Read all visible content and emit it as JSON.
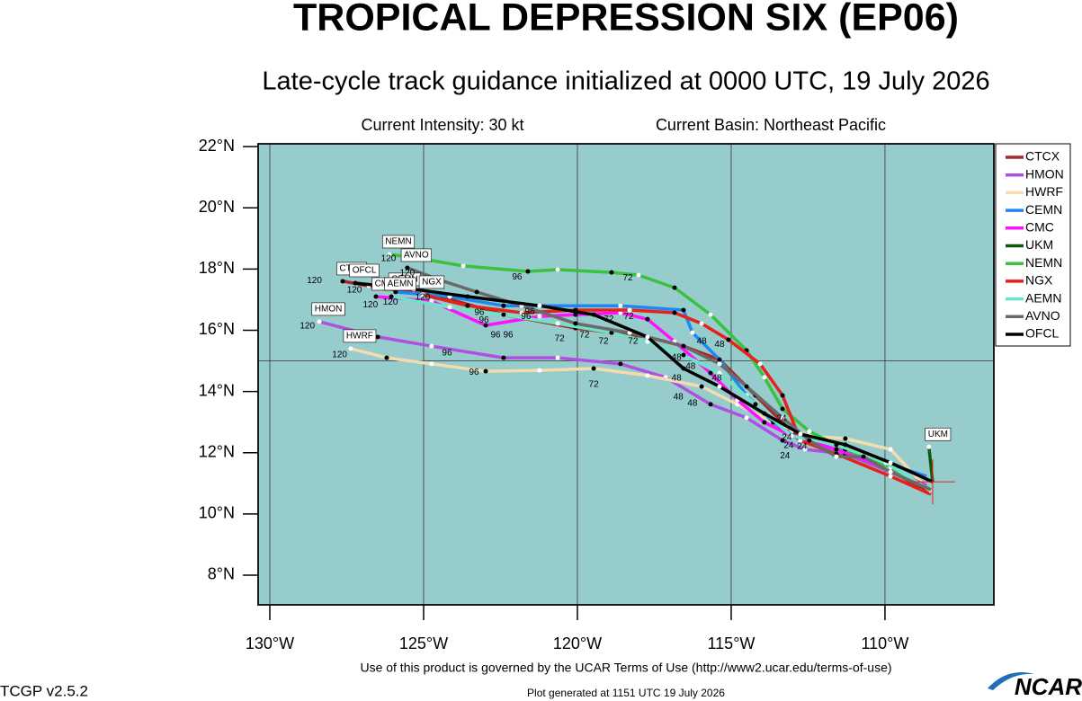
{
  "header": {
    "title": "TROPICAL DEPRESSION SIX (EP06)",
    "subtitle": "Late-cycle track guidance initialized at 0000 UTC, 19 July 2026",
    "current_intensity": "Current Intensity: 30 kt",
    "current_basin": "Current Basin: Northeast Pacific"
  },
  "map": {
    "type": "track-map",
    "xlim": [
      -130.38,
      -106.46
    ],
    "ylim": [
      7.03,
      22.09
    ],
    "xticks": [
      {
        "value": -130,
        "label": "130°W"
      },
      {
        "value": -125,
        "label": "125°W"
      },
      {
        "value": -120,
        "label": "120°W"
      },
      {
        "value": -115,
        "label": "115°W"
      },
      {
        "value": -110,
        "label": "110°W"
      }
    ],
    "yticks": [
      {
        "value": 8,
        "label": "8°N"
      },
      {
        "value": 10,
        "label": "10°N"
      },
      {
        "value": 12,
        "label": "12°N"
      },
      {
        "value": 14,
        "label": "14°N"
      },
      {
        "value": 16,
        "label": "16°N"
      },
      {
        "value": 18,
        "label": "18°N"
      },
      {
        "value": 20,
        "label": "20°N"
      },
      {
        "value": 22,
        "label": "22°N"
      }
    ],
    "grid": true,
    "background": "#96cccb",
    "tracks": [
      {
        "name": "CTCX",
        "color": "#a52a2a",
        "lon": [
          -108.51,
          -109.97,
          -112.46,
          -113.04,
          -114.21,
          -115.38,
          -116.55,
          -117.72,
          -120.06,
          -122.4,
          -124.44,
          -126.78,
          -127.63
        ],
        "lat": [
          10.64,
          11.52,
          12.4,
          12.7,
          13.87,
          15.04,
          15.48,
          15.78,
          16.07,
          16.51,
          17.1,
          17.45,
          17.6
        ]
      },
      {
        "name": "HMON",
        "color": "#b150e0",
        "lon": [
          -108.51,
          -109.82,
          -111.29,
          -112.6,
          -113.33,
          -114.5,
          -115.67,
          -117.13,
          -118.6,
          -120.64,
          -122.4,
          -124.74,
          -126.49,
          -128.39
        ],
        "lat": [
          10.79,
          11.37,
          11.96,
          12.11,
          12.4,
          13.14,
          13.58,
          14.46,
          14.9,
          15.1,
          15.1,
          15.48,
          15.78,
          16.28
        ]
      },
      {
        "name": "HWRF",
        "color": "#f2dcb0",
        "lon": [
          -108.51,
          -109.82,
          -111.29,
          -112.46,
          -113.63,
          -114.8,
          -115.96,
          -117.72,
          -119.47,
          -121.23,
          -122.98,
          -124.74,
          -126.2,
          -127.37
        ],
        "lat": [
          10.7,
          12.11,
          12.46,
          12.55,
          12.99,
          13.58,
          14.16,
          14.52,
          14.75,
          14.69,
          14.66,
          14.9,
          15.1,
          15.4
        ]
      },
      {
        "name": "CEMN",
        "color": "#1e88f0",
        "lon": [
          -108.65,
          -109.97,
          -111.58,
          -112.75,
          -113.63,
          -114.5,
          -115.38,
          -116.26,
          -116.55,
          -118.6,
          -122.4,
          -124.15,
          -125.91
        ],
        "lat": [
          11.23,
          11.67,
          12.11,
          12.4,
          12.99,
          13.87,
          15.04,
          15.92,
          16.66,
          16.8,
          16.8,
          17.1,
          17.25
        ]
      },
      {
        "name": "CMC",
        "color": "#ff10ff",
        "lon": [
          -108.65,
          -109.97,
          -111.58,
          -113.04,
          -113.92,
          -114.8,
          -115.67,
          -116.84,
          -117.72,
          -118.6,
          -120.06,
          -121.23,
          -122.98,
          -124.74,
          -126.55
        ],
        "lat": [
          10.93,
          11.52,
          12.11,
          12.55,
          12.99,
          13.72,
          14.6,
          15.63,
          16.36,
          16.57,
          16.51,
          16.45,
          16.16,
          16.95,
          17.1
        ]
      },
      {
        "name": "UKM",
        "color": "#0a5a0a",
        "lon": [
          -108.45,
          -108.57
        ],
        "lat": [
          11.05,
          12.19
        ]
      },
      {
        "name": "NEMN",
        "color": "#3cc040",
        "lon": [
          -108.51,
          -109.82,
          -111.29,
          -112.46,
          -113.33,
          -113.92,
          -114.5,
          -115.67,
          -116.84,
          -118.01,
          -118.89,
          -120.64,
          -121.61,
          -123.71,
          -125.03,
          -126.11
        ],
        "lat": [
          10.79,
          11.52,
          12.11,
          12.7,
          13.43,
          14.46,
          15.34,
          16.51,
          17.39,
          17.8,
          17.89,
          17.98,
          17.92,
          18.1,
          18.33,
          18.48
        ]
      },
      {
        "name": "NGX",
        "color": "#e8201a",
        "lon": [
          -108.57,
          -109.82,
          -111.58,
          -112.75,
          -113.33,
          -114.06,
          -115.09,
          -115.96,
          -116.84,
          -118.3,
          -120.06,
          -121.81,
          -123.57,
          -125.03
        ],
        "lat": [
          10.67,
          11.23,
          11.96,
          12.4,
          13.87,
          14.9,
          15.69,
          16.22,
          16.57,
          16.66,
          16.66,
          16.57,
          16.8,
          17.16
        ]
      },
      {
        "name": "AEMN",
        "color": "#70e2c8",
        "lon": [
          -108.57,
          -109.97,
          -111.58,
          -113.04,
          -114.21,
          -115.38,
          -116.55,
          -117.72,
          -118.89,
          -120.64,
          -122.4,
          -124.15,
          -126.05
        ],
        "lat": [
          10.79,
          11.67,
          12.26,
          12.55,
          13.58,
          14.6,
          15.19,
          15.63,
          15.92,
          16.22,
          16.51,
          16.75,
          17.1
        ]
      },
      {
        "name": "AVNO",
        "color": "#6a6a6a",
        "lon": [
          -108.51,
          -109.82,
          -110.7,
          -111.58,
          -112.46,
          -113.33,
          -114.5,
          -115.38,
          -116.55,
          -118.3,
          -120.06,
          -121.81,
          -123.27,
          -124.44,
          -125.53
        ],
        "lat": [
          10.79,
          11.37,
          11.87,
          11.87,
          12.4,
          13.14,
          14.16,
          14.9,
          15.48,
          15.92,
          16.22,
          16.8,
          17.25,
          17.63,
          18.04
        ]
      },
      {
        "name": "OFCL",
        "color": "#000000",
        "lon": [
          -108.45,
          -109.82,
          -111.29,
          -112.75,
          -113.92,
          -115.38,
          -116.55,
          -117.72,
          -119.47,
          -121.23,
          -123.57,
          -125.32,
          -127.22
        ],
        "lat": [
          11.05,
          11.67,
          12.26,
          12.61,
          13.28,
          14.16,
          14.75,
          15.78,
          16.51,
          16.8,
          17.1,
          17.34,
          17.54
        ]
      }
    ],
    "annotations": [
      {
        "label": "120",
        "lon": -128.55,
        "lat": 17.62
      },
      {
        "label": "120",
        "lon": -128.78,
        "lat": 16.13
      },
      {
        "label": "120",
        "lon": -127.73,
        "lat": 15.2
      },
      {
        "label": "120",
        "lon": -126.08,
        "lat": 16.91
      },
      {
        "label": "120",
        "lon": -126.73,
        "lat": 16.82
      },
      {
        "label": "120",
        "lon": -126.14,
        "lat": 18.33
      },
      {
        "label": "120",
        "lon": -125.53,
        "lat": 17.86
      },
      {
        "label": "120",
        "lon": -125.03,
        "lat": 17.07
      },
      {
        "label": "120",
        "lon": -127.25,
        "lat": 17.31
      },
      {
        "label": "96",
        "lon": -121.96,
        "lat": 17.74
      },
      {
        "label": "72",
        "lon": -118.36,
        "lat": 17.71
      },
      {
        "label": "48",
        "lon": -115.96,
        "lat": 15.63
      },
      {
        "label": "48",
        "lon": -115.38,
        "lat": 15.54
      },
      {
        "label": "96",
        "lon": -123.19,
        "lat": 16.57
      },
      {
        "label": "96",
        "lon": -123.04,
        "lat": 16.33
      },
      {
        "label": "96",
        "lon": -122.66,
        "lat": 15.84
      },
      {
        "label": "96",
        "lon": -122.25,
        "lat": 15.84
      },
      {
        "label": "96",
        "lon": -121.67,
        "lat": 16.45
      },
      {
        "label": "96",
        "lon": -121.55,
        "lat": 16.6
      },
      {
        "label": "72",
        "lon": -120.58,
        "lat": 15.72
      },
      {
        "label": "72",
        "lon": -119.77,
        "lat": 15.84
      },
      {
        "label": "72",
        "lon": -119.15,
        "lat": 15.63
      },
      {
        "label": "72",
        "lon": -118.98,
        "lat": 16.36
      },
      {
        "label": "72",
        "lon": -118.33,
        "lat": 16.45
      },
      {
        "label": "72",
        "lon": -118.19,
        "lat": 15.63
      },
      {
        "label": "96",
        "lon": -124.24,
        "lat": 15.25
      },
      {
        "label": "96",
        "lon": -123.36,
        "lat": 14.63
      },
      {
        "label": "72",
        "lon": -119.47,
        "lat": 14.22
      },
      {
        "label": "48",
        "lon": -116.78,
        "lat": 14.43
      },
      {
        "label": "48",
        "lon": -116.72,
        "lat": 13.81
      },
      {
        "label": "48",
        "lon": -116.26,
        "lat": 13.61
      },
      {
        "label": "48",
        "lon": -115.47,
        "lat": 14.43
      },
      {
        "label": "48",
        "lon": -116.32,
        "lat": 14.81
      },
      {
        "label": "48",
        "lon": -116.78,
        "lat": 15.1
      },
      {
        "label": "24",
        "lon": -113.36,
        "lat": 13.11
      },
      {
        "label": "24",
        "lon": -113.25,
        "lat": 11.9
      },
      {
        "label": "24",
        "lon": -113.13,
        "lat": 12.23
      },
      {
        "label": "24",
        "lon": -112.69,
        "lat": 12.2
      },
      {
        "label": "24",
        "lon": -113.19,
        "lat": 12.49
      }
    ]
  },
  "footer": {
    "terms": "Use of this product is governed by the UCAR Terms of Use (http://www2.ucar.edu/terms-of-use)",
    "version": "TCGP v2.5.2",
    "generated": "Plot generated at 1151 UTC   19 July 2026",
    "logo": "NCAR"
  }
}
